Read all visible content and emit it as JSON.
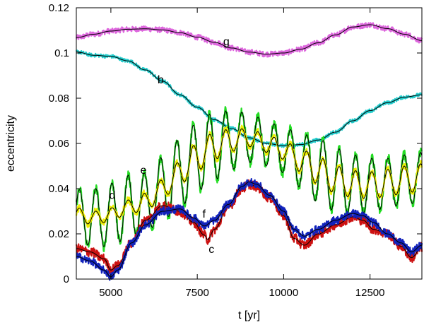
{
  "chart_data": {
    "type": "line",
    "title": "",
    "xlabel": "t [yr]",
    "ylabel": "eccentricity",
    "xlim": [
      4000,
      14000
    ],
    "ylim": [
      0,
      0.12
    ],
    "grid": false,
    "x_ticks": [
      {
        "value": 5000,
        "label": "5000"
      },
      {
        "value": 7500,
        "label": "7500"
      },
      {
        "value": 10000,
        "label": "10000"
      },
      {
        "value": 12500,
        "label": "12500"
      }
    ],
    "y_ticks": [
      {
        "value": 0,
        "label": "0"
      },
      {
        "value": 0.02,
        "label": "0.02"
      },
      {
        "value": 0.04,
        "label": "0.04"
      },
      {
        "value": 0.06,
        "label": "0.06"
      },
      {
        "value": 0.08,
        "label": "0.08"
      },
      {
        "value": 0.1,
        "label": "0.1"
      },
      {
        "value": 0.12,
        "label": "0.12"
      }
    ],
    "series": [
      {
        "name": "g",
        "color": "#dd66dd",
        "mean_color": "#000000",
        "noise": 0.0012,
        "x": [
          4000,
          4500,
          5000,
          5500,
          6000,
          6500,
          7000,
          7500,
          8000,
          8500,
          9000,
          9500,
          10000,
          10500,
          11000,
          11500,
          12000,
          12500,
          13000,
          13500,
          14000
        ],
        "values": [
          0.1068,
          0.1083,
          0.1097,
          0.1105,
          0.1107,
          0.1102,
          0.109,
          0.107,
          0.1047,
          0.1022,
          0.1004,
          0.0995,
          0.1,
          0.1017,
          0.1045,
          0.108,
          0.1115,
          0.1125,
          0.1108,
          0.1083,
          0.1055
        ],
        "label": {
          "text": "g",
          "x": 8250,
          "y": 0.1035
        }
      },
      {
        "name": "b",
        "color": "#22cccc",
        "mean_color": "#000000",
        "noise": 0.0008,
        "x": [
          4000,
          4500,
          5000,
          5500,
          6000,
          6500,
          7000,
          7500,
          8000,
          8500,
          9000,
          9500,
          10000,
          10500,
          11000,
          11500,
          12000,
          12500,
          13000,
          13500,
          14000
        ],
        "values": [
          0.1005,
          0.099,
          0.0985,
          0.0965,
          0.0925,
          0.0875,
          0.0815,
          0.076,
          0.0705,
          0.0665,
          0.0625,
          0.06,
          0.059,
          0.0595,
          0.0615,
          0.065,
          0.07,
          0.0745,
          0.078,
          0.0805,
          0.0815
        ],
        "label": {
          "text": "b",
          "x": 6350,
          "y": 0.0865
        }
      },
      {
        "name": "e",
        "color": "#22dd22",
        "mean_color": "#000000",
        "noise": 0.0022,
        "x": [
          4000,
          4500,
          5000,
          5500,
          6000,
          6500,
          7000,
          7500,
          8000,
          8500,
          9000,
          9500,
          10000,
          10500,
          11000,
          11500,
          12000,
          12500,
          13000,
          13500,
          14000
        ],
        "values": [
          0.0285,
          0.027,
          0.0285,
          0.032,
          0.034,
          0.04,
          0.047,
          0.054,
          0.059,
          0.0615,
          0.0625,
          0.06,
          0.057,
          0.0525,
          0.048,
          0.044,
          0.042,
          0.0415,
          0.0425,
          0.044,
          0.045
        ],
        "amplitude": [
          0.011,
          0.013,
          0.014,
          0.014,
          0.013,
          0.014,
          0.015,
          0.015,
          0.015,
          0.013,
          0.011,
          0.01,
          0.01,
          0.012,
          0.014,
          0.014,
          0.013,
          0.012,
          0.011,
          0.011,
          0.011
        ],
        "period": 470,
        "label": {
          "text": "e",
          "x": 5850,
          "y": 0.0465
        }
      },
      {
        "name": "d",
        "color": "#eeee00",
        "mean_color": "#000000",
        "noise": 0.0015,
        "x": [
          4000,
          4500,
          5000,
          5500,
          6000,
          6500,
          7000,
          7500,
          8000,
          8500,
          9000,
          9500,
          10000,
          10500,
          11000,
          11500,
          12000,
          12500,
          13000,
          13500,
          14000
        ],
        "values": [
          0.0285,
          0.027,
          0.0285,
          0.032,
          0.034,
          0.04,
          0.047,
          0.054,
          0.059,
          0.0615,
          0.0625,
          0.06,
          0.057,
          0.0525,
          0.048,
          0.044,
          0.042,
          0.0415,
          0.0425,
          0.044,
          0.045
        ],
        "amplitude": [
          0.003,
          0.003,
          0.003,
          0.003,
          0.004,
          0.004,
          0.005,
          0.006,
          0.006,
          0.005,
          0.004,
          0.004,
          0.004,
          0.005,
          0.006,
          0.006,
          0.006,
          0.006,
          0.006,
          0.006,
          0.006
        ],
        "period": 470,
        "label": {
          "text": "d",
          "x": 4950,
          "y": 0.0355
        }
      },
      {
        "name": "c",
        "color": "#cc1111",
        "mean_color": "#000000",
        "noise": 0.0022,
        "x": [
          4000,
          4400,
          4800,
          5000,
          5200,
          5600,
          6000,
          6500,
          7000,
          7400,
          7700,
          7800,
          8000,
          8400,
          8800,
          9000,
          9200,
          9600,
          10000,
          10300,
          10600,
          11000,
          11500,
          12000,
          12300,
          12600,
          13000,
          13400,
          13700,
          14000
        ],
        "values": [
          0.0135,
          0.012,
          0.009,
          0.004,
          0.006,
          0.016,
          0.026,
          0.0325,
          0.03,
          0.025,
          0.0195,
          0.0175,
          0.022,
          0.032,
          0.04,
          0.042,
          0.041,
          0.036,
          0.028,
          0.018,
          0.015,
          0.02,
          0.024,
          0.0275,
          0.026,
          0.022,
          0.02,
          0.0145,
          0.0095,
          0.014
        ],
        "label": {
          "text": "c",
          "x": 7830,
          "y": 0.0115
        }
      },
      {
        "name": "f",
        "color": "#1122bb",
        "mean_color": "#000000",
        "noise": 0.0018,
        "x": [
          4000,
          4400,
          4800,
          5000,
          5200,
          5600,
          6000,
          6500,
          7000,
          7400,
          7700,
          8000,
          8400,
          8800,
          9000,
          9200,
          9600,
          10000,
          10300,
          10600,
          11000,
          11500,
          12000,
          12300,
          12600,
          13000,
          13400,
          13700,
          14000
        ],
        "values": [
          0.01,
          0.008,
          0.004,
          0.001,
          0.004,
          0.016,
          0.024,
          0.03,
          0.031,
          0.027,
          0.0235,
          0.026,
          0.033,
          0.041,
          0.043,
          0.042,
          0.037,
          0.03,
          0.022,
          0.019,
          0.022,
          0.026,
          0.029,
          0.028,
          0.025,
          0.02,
          0.016,
          0.012,
          0.015
        ],
        "label": {
          "text": "f",
          "x": 7650,
          "y": 0.0272
        }
      }
    ]
  }
}
